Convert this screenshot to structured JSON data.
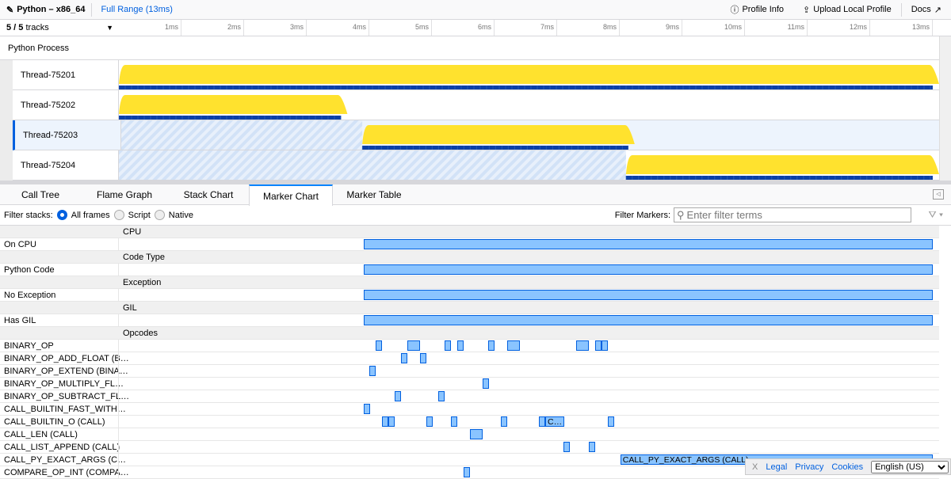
{
  "topbar": {
    "title": "Python – x86_64",
    "range": "Full Range (13ms)",
    "profile_info": "Profile Info",
    "upload": "Upload Local Profile",
    "docs": "Docs"
  },
  "timeline": {
    "tracks_count": "5 / 5",
    "tracks_label": "tracks",
    "ticks": [
      "1ms",
      "2ms",
      "3ms",
      "4ms",
      "5ms",
      "6ms",
      "7ms",
      "8ms",
      "9ms",
      "10ms",
      "11ms",
      "12ms",
      "13ms"
    ],
    "process": "Python Process",
    "threads": [
      {
        "name": "Thread-75201",
        "active_ms": [
          0,
          13.05
        ],
        "selected": false
      },
      {
        "name": "Thread-75202",
        "active_ms": [
          0,
          3.6
        ],
        "selected": false
      },
      {
        "name": "Thread-75203",
        "active_ms": [
          3.85,
          8.15
        ],
        "selected": true
      },
      {
        "name": "Thread-75204",
        "active_ms": [
          8.1,
          13.05
        ],
        "selected": false
      }
    ]
  },
  "tabs": [
    {
      "label": "Call Tree"
    },
    {
      "label": "Flame Graph"
    },
    {
      "label": "Stack Chart"
    },
    {
      "label": "Marker Chart",
      "active": true
    },
    {
      "label": "Marker Table"
    }
  ],
  "filter": {
    "label": "Filter stacks:",
    "options": [
      "All frames",
      "Script",
      "Native"
    ],
    "selected": "All frames",
    "markers_label": "Filter Markers:",
    "placeholder": "Enter filter terms"
  },
  "colors": {
    "cpu_graph": "#ffe22e",
    "marker_fill": "#8ac4ff",
    "marker_border": "#0060df",
    "accent": "#0a84ff"
  },
  "marker_rows": [
    {
      "group": "CPU"
    },
    {
      "name": "On CPU",
      "markers": [
        [
          3.91,
          13.0
        ]
      ]
    },
    {
      "group": "Code Type"
    },
    {
      "name": "Python Code",
      "markers": [
        [
          3.91,
          13.0
        ]
      ]
    },
    {
      "group": "Exception"
    },
    {
      "name": "No Exception",
      "markers": [
        [
          3.91,
          13.0
        ]
      ]
    },
    {
      "group": "GIL"
    },
    {
      "name": "Has GIL",
      "markers": [
        [
          3.91,
          13.0
        ]
      ]
    },
    {
      "group": "Opcodes"
    },
    {
      "name": "BINARY_OP",
      "markers": [
        [
          4.1,
          4.2
        ],
        [
          4.61,
          4.81
        ],
        [
          5.2,
          5.3
        ],
        [
          5.41,
          5.51
        ],
        [
          5.9,
          6.0
        ],
        [
          6.2,
          6.41
        ],
        [
          7.3,
          7.51
        ],
        [
          7.61,
          7.71
        ],
        [
          7.71,
          7.81
        ]
      ]
    },
    {
      "name": "BINARY_OP_ADD_FLOAT (B…",
      "markers": [
        [
          4.51,
          4.61
        ],
        [
          4.81,
          4.91
        ]
      ]
    },
    {
      "name": "BINARY_OP_EXTEND (BINA…",
      "markers": [
        [
          4.0,
          4.1
        ]
      ]
    },
    {
      "name": "BINARY_OP_MULTIPLY_FL…",
      "markers": [
        [
          5.81,
          5.91
        ]
      ]
    },
    {
      "name": "BINARY_OP_SUBTRACT_FL…",
      "markers": [
        [
          4.41,
          4.51
        ],
        [
          5.1,
          5.2
        ]
      ]
    },
    {
      "name": "CALL_BUILTIN_FAST_WITH…",
      "markers": [
        [
          3.91,
          4.0
        ]
      ]
    },
    {
      "name": "CALL_BUILTIN_O (CALL)",
      "markers": [
        [
          4.2,
          4.3
        ],
        [
          4.3,
          4.41
        ],
        [
          4.91,
          5.0
        ],
        [
          5.3,
          5.41
        ],
        [
          6.1,
          6.2
        ],
        [
          6.71,
          6.81
        ],
        [
          6.81,
          7.11,
          "C…"
        ],
        [
          7.81,
          7.91
        ]
      ]
    },
    {
      "name": "CALL_LEN (CALL)",
      "markers": [
        [
          5.61,
          5.81
        ]
      ]
    },
    {
      "name": "CALL_LIST_APPEND (CALL)",
      "markers": [
        [
          7.1,
          7.2
        ],
        [
          7.51,
          7.61
        ]
      ]
    },
    {
      "name": "CALL_PY_EXACT_ARGS (C…",
      "markers": [
        [
          8.01,
          13.0,
          "CALL_PY_EXACT_ARGS (CALL)"
        ]
      ]
    },
    {
      "name": "COMPARE_OP_INT (COMPA…",
      "markers": [
        [
          5.51,
          5.61
        ]
      ]
    }
  ],
  "footer": {
    "close": "X",
    "legal": "Legal",
    "privacy": "Privacy",
    "cookies": "Cookies",
    "language": "English (US)"
  }
}
